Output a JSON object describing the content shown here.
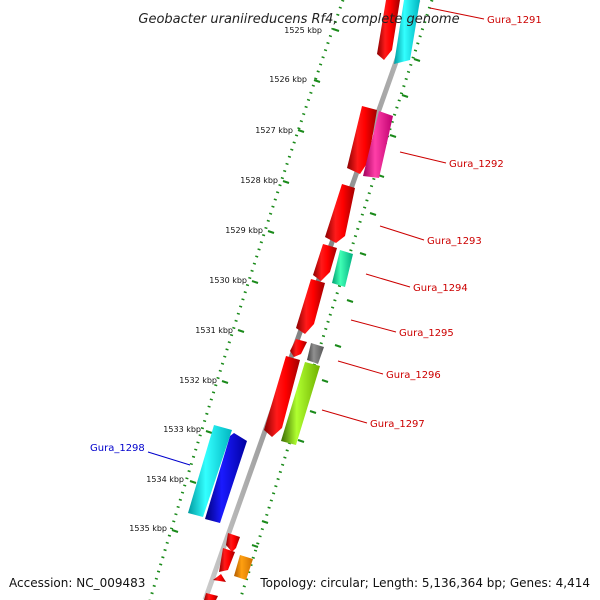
{
  "title": "Geobacter uraniireducens Rf4, complete genome",
  "footer": {
    "accession": "Accession: NC_009483",
    "topology": "Topology: circular; Length: 5,136,364 bp; Genes: 4,414"
  },
  "colors": {
    "backbone": "#888888",
    "tick": "#1a8a1a",
    "forward_label": "#cc0000",
    "reverse_label": "#0000cc"
  },
  "ticks": [
    "1525 kbp",
    "1526 kbp",
    "1527 kbp",
    "1528 kbp",
    "1529 kbp",
    "1530 kbp",
    "1531 kbp",
    "1532 kbp",
    "1533 kbp",
    "1534 kbp",
    "1535 kbp"
  ],
  "labels": [
    {
      "id": "gura_1291",
      "text": "Gura_1291",
      "strand": "forward"
    },
    {
      "id": "gura_1292",
      "text": "Gura_1292",
      "strand": "forward"
    },
    {
      "id": "gura_1293",
      "text": "Gura_1293",
      "strand": "forward"
    },
    {
      "id": "gura_1294",
      "text": "Gura_1294",
      "strand": "forward"
    },
    {
      "id": "gura_1295",
      "text": "Gura_1295",
      "strand": "forward"
    },
    {
      "id": "gura_1296",
      "text": "Gura_1296",
      "strand": "forward"
    },
    {
      "id": "gura_1297",
      "text": "Gura_1297",
      "strand": "forward"
    },
    {
      "id": "gura_1298",
      "text": "Gura_1298",
      "strand": "reverse"
    }
  ]
}
